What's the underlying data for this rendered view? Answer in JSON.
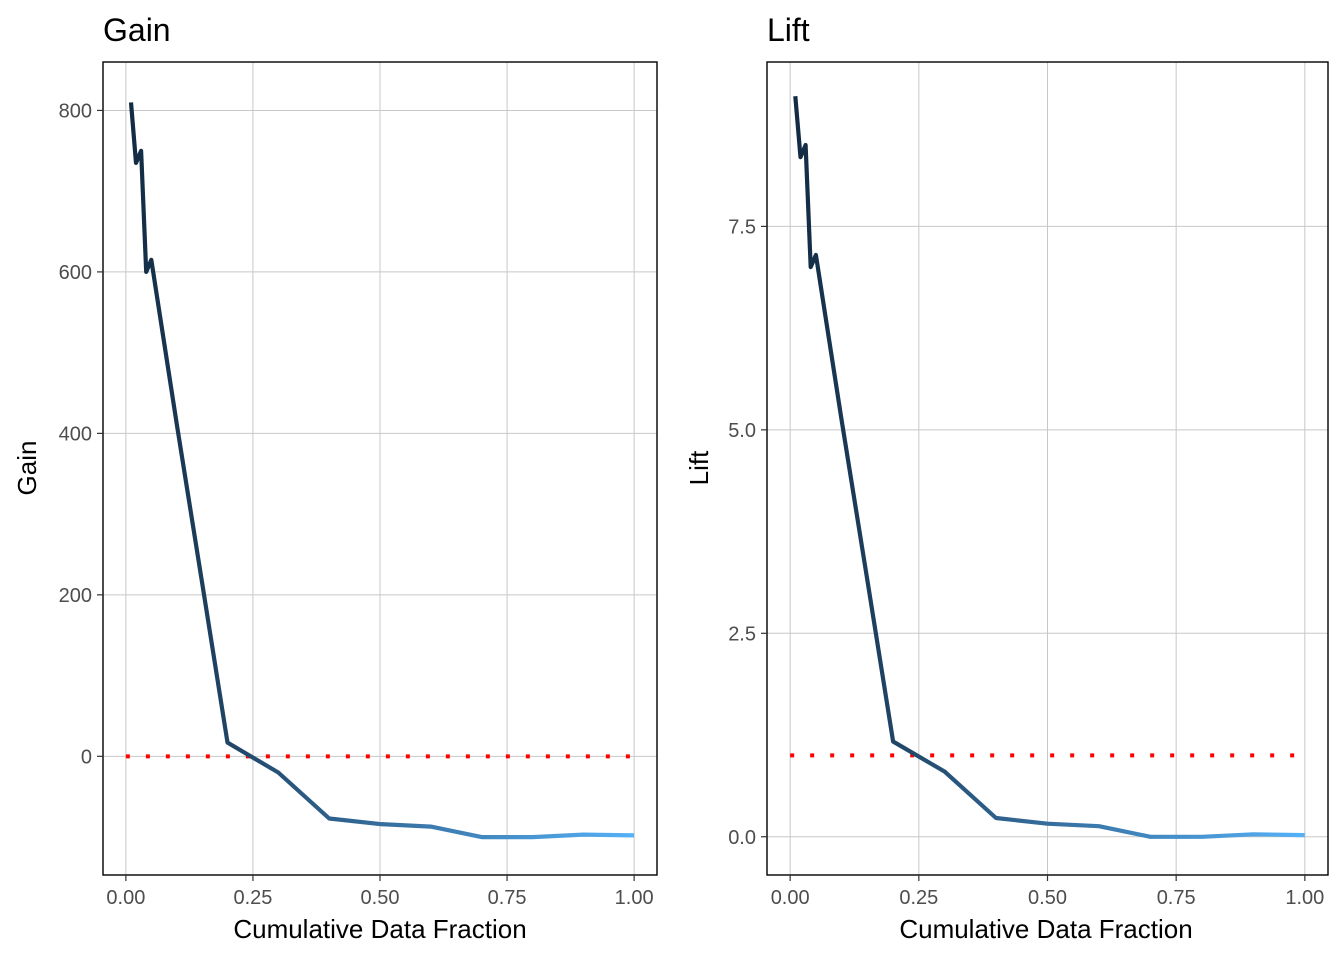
{
  "colors": {
    "line_start": "#132b43",
    "line_end": "#56b1f7",
    "reference": "#ff0000",
    "grid": "#c8c8c8"
  },
  "chart_data": [
    {
      "id": "gain",
      "type": "line",
      "title": "Gain",
      "xlabel": "Cumulative Data Fraction",
      "ylabel": "Gain",
      "xlim": [
        -0.045,
        1.045
      ],
      "ylim": [
        -147,
        860
      ],
      "xticks": [
        0,
        0.25,
        0.5,
        0.75,
        1
      ],
      "xtick_labels": [
        "0.00",
        "0.25",
        "0.50",
        "0.75",
        "1.00"
      ],
      "yticks": [
        0,
        200,
        400,
        600,
        800
      ],
      "ytick_labels": [
        "0",
        "200",
        "400",
        "600",
        "800"
      ],
      "grid": true,
      "series": [
        {
          "x": [
            0.01,
            0.02,
            0.03,
            0.04,
            0.05,
            0.1,
            0.15,
            0.2,
            0.3,
            0.4,
            0.5,
            0.6,
            0.7,
            0.8,
            0.9,
            1.0
          ],
          "y": [
            810,
            735,
            750,
            600,
            615,
            412,
            215,
            17,
            -20,
            -77,
            -84,
            -87,
            -100,
            -100,
            -97,
            -98
          ]
        }
      ],
      "reference": {
        "x": [
          0.0,
          1.0
        ],
        "y": [
          0,
          0
        ]
      }
    },
    {
      "id": "lift",
      "type": "line",
      "title": "Lift",
      "xlabel": "Cumulative Data Fraction",
      "ylabel": "Lift",
      "xlim": [
        -0.045,
        1.045
      ],
      "ylim": [
        -0.47,
        9.52
      ],
      "xticks": [
        0,
        0.25,
        0.5,
        0.75,
        1
      ],
      "xtick_labels": [
        "0.00",
        "0.25",
        "0.50",
        "0.75",
        "1.00"
      ],
      "yticks": [
        0,
        2.5,
        5,
        7.5
      ],
      "ytick_labels": [
        "0.0",
        "2.5",
        "5.0",
        "7.5"
      ],
      "grid": true,
      "series": [
        {
          "x": [
            0.01,
            0.02,
            0.03,
            0.04,
            0.05,
            0.1,
            0.15,
            0.2,
            0.3,
            0.4,
            0.5,
            0.6,
            0.7,
            0.8,
            0.9,
            1.0
          ],
          "y": [
            9.1,
            8.35,
            8.5,
            7.0,
            7.15,
            5.12,
            3.15,
            1.17,
            0.8,
            0.23,
            0.16,
            0.13,
            0.0,
            0.0,
            0.03,
            0.02
          ]
        }
      ],
      "reference": {
        "x": [
          0.0,
          1.0
        ],
        "y": [
          1,
          1
        ]
      }
    }
  ]
}
